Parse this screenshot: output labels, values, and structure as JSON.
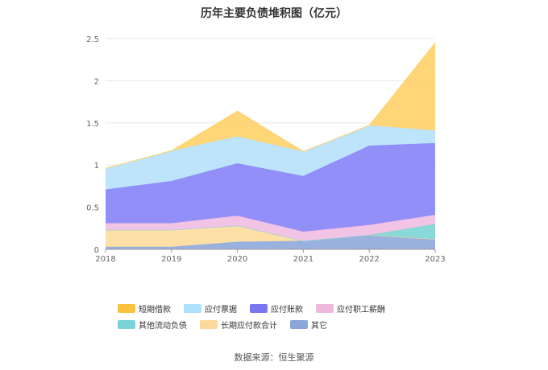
{
  "chart_data": {
    "type": "area",
    "title": "历年主要负债堆积图（亿元）",
    "stacked": true,
    "categories": [
      "2018",
      "2019",
      "2020",
      "2021",
      "2022",
      "2023"
    ],
    "ylim": [
      0,
      2.5
    ],
    "yticks": [
      "0",
      "0.5",
      "1",
      "1.5",
      "2",
      "2.5"
    ],
    "grid": true,
    "legend_position": "bottom",
    "series": [
      {
        "name": "其它",
        "color": "#8faadc",
        "values": [
          0.03,
          0.03,
          0.09,
          0.1,
          0.17,
          0.12
        ]
      },
      {
        "name": "长期应付款合计",
        "color": "#fedd9e",
        "values": [
          0.2,
          0.2,
          0.19,
          0.0,
          0.0,
          0.0
        ]
      },
      {
        "name": "其他流动负债",
        "color": "#7fd6d6",
        "values": [
          0.0,
          0.0,
          0.0,
          0.0,
          0.0,
          0.18
        ]
      },
      {
        "name": "应付职工薪酬",
        "color": "#f0bfe3",
        "values": [
          0.08,
          0.08,
          0.12,
          0.11,
          0.12,
          0.11
        ]
      },
      {
        "name": "应付账款",
        "color": "#8a86f7",
        "values": [
          0.4,
          0.5,
          0.62,
          0.66,
          0.94,
          0.85
        ]
      },
      {
        "name": "应付票据",
        "color": "#b8e2fb",
        "values": [
          0.25,
          0.36,
          0.32,
          0.29,
          0.24,
          0.15
        ]
      },
      {
        "name": "短期借款",
        "color": "#fed36c",
        "values": [
          0.0,
          0.0,
          0.3,
          0.0,
          0.0,
          1.04
        ]
      }
    ]
  },
  "legend": [
    {
      "label": "短期借款",
      "color": "#f9c13d"
    },
    {
      "label": "应付票据",
      "color": "#aee0fb"
    },
    {
      "label": "应付账款",
      "color": "#7a76f2"
    },
    {
      "label": "应付职工薪酬",
      "color": "#eeb8dc"
    },
    {
      "label": "其他流动负债",
      "color": "#7cd3d6"
    },
    {
      "label": "长期应付款合计",
      "color": "#fbd99a"
    },
    {
      "label": "其它",
      "color": "#8aa6da"
    }
  ],
  "source": {
    "label": "数据来源：",
    "value": "恒生聚源"
  }
}
